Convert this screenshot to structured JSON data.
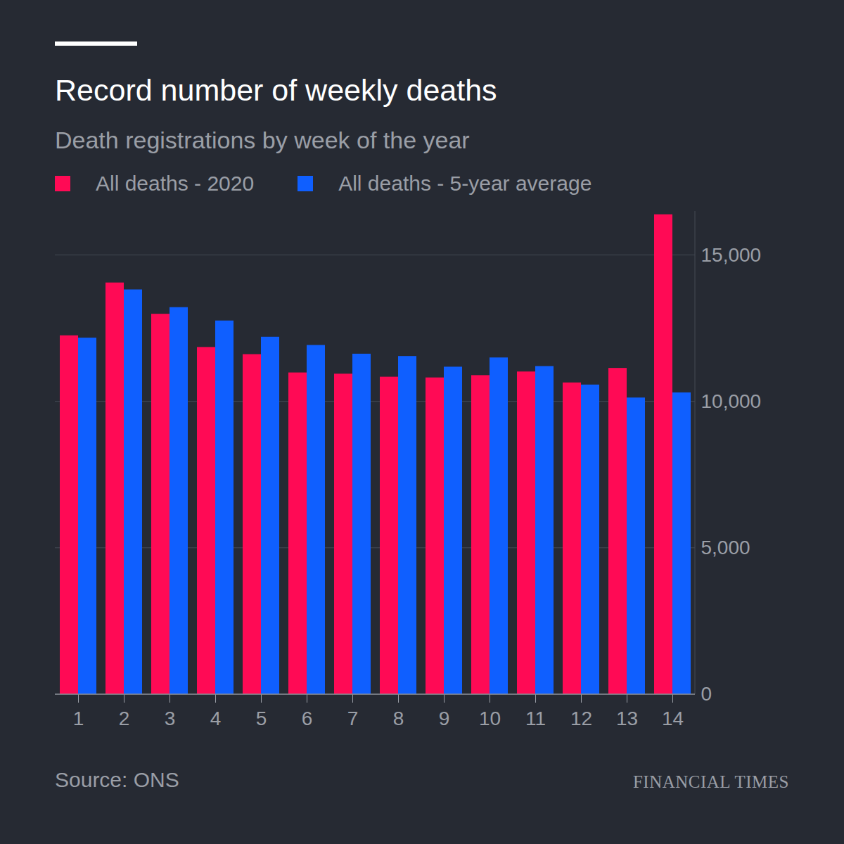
{
  "chart_data": {
    "type": "bar",
    "title": "Record number of weekly deaths",
    "subtitle": "Death registrations by week of the year",
    "source": "Source: ONS",
    "publisher": "FINANCIAL TIMES",
    "categories": [
      1,
      2,
      3,
      4,
      5,
      6,
      7,
      8,
      9,
      10,
      11,
      12,
      13,
      14
    ],
    "series": [
      {
        "name": "All deaths - 2020",
        "color": "#ff0a55",
        "values": [
          12254,
          14058,
          12990,
          11856,
          11612,
          10986,
          10944,
          10841,
          10816,
          10895,
          11019,
          10645,
          11141,
          16387
        ]
      },
      {
        "name": "All deaths - 5-year average",
        "color": "#0f5fff",
        "values": [
          12175,
          13822,
          13216,
          12760,
          12206,
          11925,
          11627,
          11548,
          11183,
          11498,
          11205,
          10573,
          10130,
          10305
        ]
      }
    ],
    "ylim": [
      0,
      16500
    ],
    "yticks": [
      0,
      {
        "value": 5000,
        "label": "5,000"
      },
      {
        "value": 10000,
        "label": "10,000"
      },
      {
        "value": 15000,
        "label": "15,000"
      }
    ],
    "grid": true,
    "legend": "top-left"
  }
}
